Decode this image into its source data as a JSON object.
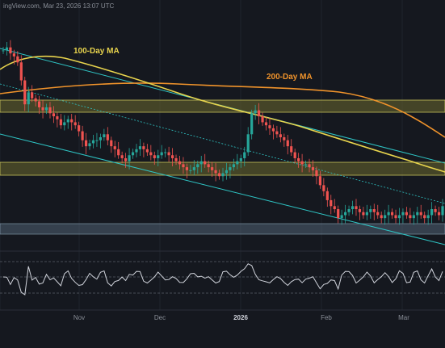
{
  "header": {
    "watermark": "ingView.com, Mar 23, 2026 13:07 UTC"
  },
  "colors": {
    "background": "#15181f",
    "up": "#26a69a",
    "down": "#ef5350",
    "ma100": "#e8d44d",
    "ma200": "#f0932b",
    "channel": "#2ec4c4",
    "zone_fill": "#6b6a2e",
    "zone_edge": "#c9c45a",
    "support_fill": "#5d7286",
    "rsi": "#d1d4dc"
  },
  "chart_data": {
    "type": "candlestick",
    "annotations": [
      {
        "text": "100-Day MA",
        "color": "#e8d44d"
      },
      {
        "text": "200-Day MA",
        "color": "#f0932b"
      }
    ],
    "x_axis": {
      "ticks": [
        {
          "label": "Nov",
          "bold": false
        },
        {
          "label": "Dec",
          "bold": false
        },
        {
          "label": "2026",
          "bold": true
        },
        {
          "label": "Feb",
          "bold": false
        },
        {
          "label": "Mar",
          "bold": false
        }
      ]
    },
    "candles": [
      100,
      101,
      99,
      98,
      96,
      90,
      82,
      86,
      84,
      83,
      81,
      80,
      81,
      79,
      78,
      77,
      75,
      76,
      77,
      76,
      75,
      73,
      70,
      68,
      69,
      70,
      70,
      71,
      72,
      70,
      68,
      67,
      65,
      64,
      63,
      65,
      66,
      67,
      68,
      67,
      66,
      65,
      64,
      65,
      66,
      66,
      65,
      64,
      63,
      62,
      61,
      60,
      60,
      61,
      62,
      63,
      62,
      61,
      60,
      59,
      58,
      59,
      60,
      61,
      62,
      63,
      64,
      66,
      72,
      79,
      80,
      78,
      76,
      75,
      74,
      73,
      72,
      71,
      70,
      68,
      66,
      64,
      63,
      62,
      62,
      61,
      60,
      58,
      55,
      53,
      50,
      48,
      47,
      44,
      45,
      46,
      47,
      48,
      47,
      46,
      45,
      46,
      47,
      46,
      45,
      44,
      45,
      46,
      45,
      44,
      45,
      46,
      45,
      44,
      45,
      46,
      45,
      44,
      45,
      47,
      46,
      45,
      48
    ]
  }
}
